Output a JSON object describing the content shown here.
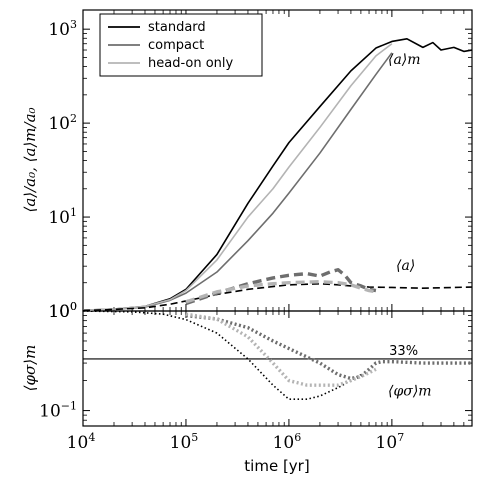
{
  "chart_data": {
    "type": "line",
    "xlabel": "time [yr]",
    "xscale": "log",
    "xlim": [
      10000,
      60000000
    ],
    "x_ticks": [
      {
        "base": "10",
        "exp": "4",
        "value": 10000
      },
      {
        "base": "10",
        "exp": "5",
        "value": 100000
      },
      {
        "base": "10",
        "exp": "6",
        "value": 1000000
      },
      {
        "base": "10",
        "exp": "7",
        "value": 10000000
      }
    ],
    "legend": {
      "placement": "top-left",
      "entries": [
        {
          "label": "standard",
          "color": "#000000"
        },
        {
          "label": "compact",
          "color": "#6e6e6e"
        },
        {
          "label": "head-on only",
          "color": "#b4b4b4"
        }
      ]
    },
    "panels": [
      {
        "name": "top",
        "ylabel": "⟨a⟩/a₀, ⟨a⟩m/a₀",
        "yscale": "log",
        "ylim": [
          1,
          1600
        ],
        "y_ticks": [
          {
            "base": "10",
            "exp": "0",
            "value": 1
          },
          {
            "base": "10",
            "exp": "1",
            "value": 10
          },
          {
            "base": "10",
            "exp": "2",
            "value": 100
          },
          {
            "base": "10",
            "exp": "3",
            "value": 1000
          }
        ],
        "annotations": [
          {
            "text": "⟨a⟩m",
            "x": 15000000,
            "y": 480
          },
          {
            "text": "⟨a⟩",
            "x": 15000000,
            "y": 3.1
          }
        ],
        "series": [
          {
            "name": "standard",
            "style": "solid",
            "color": "#000000",
            "width": 1.6,
            "x": [
              10000,
              20000,
              40000,
              70000,
              100000,
              200000,
              400000,
              700000,
              1000000,
              2000000,
              4000000,
              7000000,
              10000000,
              14000000,
              20000000,
              25000000,
              30000000,
              40000000,
              50000000,
              60000000
            ],
            "y": [
              1.02,
              1.05,
              1.12,
              1.35,
              1.7,
              4.0,
              14,
              35,
              62,
              150,
              360,
              630,
              740,
              790,
              640,
              720,
              600,
              640,
              580,
              600
            ]
          },
          {
            "name": "compact",
            "style": "solid",
            "color": "#6e6e6e",
            "width": 1.6,
            "x": [
              10000,
              20000,
              40000,
              70000,
              100000,
              200000,
              400000,
              700000,
              1000000,
              2000000,
              4000000,
              7000000,
              10000000
            ],
            "y": [
              1.02,
              1.04,
              1.1,
              1.3,
              1.55,
              2.6,
              5.6,
              11,
              18,
              48,
              140,
              330,
              560
            ]
          },
          {
            "name": "head-on only",
            "style": "solid",
            "color": "#b4b4b4",
            "width": 1.6,
            "x": [
              10000,
              20000,
              40000,
              70000,
              100000,
              200000,
              400000,
              700000,
              1000000,
              2000000,
              4000000,
              7000000,
              10000000
            ],
            "y": [
              1.02,
              1.05,
              1.12,
              1.32,
              1.65,
              3.5,
              10,
              20,
              34,
              90,
              250,
              520,
              700
            ]
          },
          {
            "name": "standard ⟨a⟩",
            "style": "dashed",
            "color": "#000000",
            "width": 1.6,
            "x": [
              10000,
              20000,
              40000,
              70000,
              100000,
              200000,
              400000,
              700000,
              1000000,
              2000000,
              3000000,
              4000000,
              6000000,
              10000000,
              20000000,
              60000000
            ],
            "y": [
              1.01,
              1.04,
              1.08,
              1.18,
              1.28,
              1.5,
              1.7,
              1.82,
              1.9,
              1.95,
              1.9,
              1.85,
              1.8,
              1.78,
              1.75,
              1.8
            ]
          },
          {
            "name": "compact ⟨a⟩",
            "style": "dashed",
            "color": "#6e6e6e",
            "width": 3.4,
            "x": [
              100000,
              200000,
              400000,
              700000,
              1000000,
              1500000,
              2000000,
              2500000,
              3000000,
              3500000,
              4000000,
              5000000,
              6000000,
              7000000
            ],
            "y": [
              1.2,
              1.55,
              1.95,
              2.25,
              2.4,
              2.5,
              2.35,
              2.6,
              2.75,
              2.4,
              2.0,
              1.85,
              1.7,
              1.65
            ]
          },
          {
            "name": "head-on ⟨a⟩",
            "style": "dashed",
            "color": "#b4b4b4",
            "width": 3.4,
            "x": [
              100000,
              200000,
              400000,
              700000,
              1000000,
              2000000,
              3000000,
              4000000,
              5000000,
              6000000,
              7000000
            ],
            "y": [
              1.25,
              1.6,
              1.85,
              1.95,
              2.0,
              2.05,
              2.0,
              1.9,
              1.75,
              1.65,
              1.6
            ]
          }
        ]
      },
      {
        "name": "bottom",
        "ylabel": "⟨φσ⟩m",
        "yscale": "log",
        "ylim": [
          0.07,
          1
        ],
        "y_ticks": [
          {
            "base": "10",
            "exp": "0",
            "value": 1
          },
          {
            "base": "10",
            "exp": "−1",
            "value": 0.1
          }
        ],
        "reference_line": {
          "value": 0.33,
          "label": "33%"
        },
        "annotations": [
          {
            "text": "⟨φσ⟩m",
            "x": 15000000,
            "y": 0.16
          }
        ],
        "series": [
          {
            "name": "standard ⟨φσ⟩m",
            "style": "dotted",
            "color": "#000000",
            "width": 1.6,
            "x": [
              10000,
              30000,
              60000,
              100000,
              200000,
              400000,
              700000,
              1000000,
              1500000,
              2000000,
              3000000,
              4000000,
              5000000
            ],
            "y": [
              1.0,
              0.98,
              0.93,
              0.82,
              0.6,
              0.33,
              0.18,
              0.13,
              0.13,
              0.14,
              0.17,
              0.2,
              0.23
            ]
          },
          {
            "name": "compact ⟨φσ⟩m",
            "style": "dotted",
            "color": "#6e6e6e",
            "width": 3.4,
            "x": [
              100000,
              200000,
              400000,
              700000,
              1000000,
              2000000,
              3000000,
              4000000,
              5000000,
              6000000,
              7000000,
              8000000,
              10000000,
              20000000,
              60000000
            ],
            "y": [
              0.9,
              0.83,
              0.68,
              0.5,
              0.42,
              0.3,
              0.23,
              0.21,
              0.22,
              0.26,
              0.3,
              0.31,
              0.31,
              0.3,
              0.3
            ]
          },
          {
            "name": "head-on ⟨φσ⟩m",
            "style": "dotted",
            "color": "#b4b4b4",
            "width": 3.4,
            "x": [
              100000,
              200000,
              400000,
              700000,
              1000000,
              1500000,
              2000000,
              3000000,
              4000000,
              5000000,
              6000000,
              7000000
            ],
            "y": [
              0.93,
              0.83,
              0.55,
              0.3,
              0.2,
              0.18,
              0.18,
              0.18,
              0.2,
              0.22,
              0.24,
              0.26
            ]
          }
        ]
      }
    ]
  }
}
